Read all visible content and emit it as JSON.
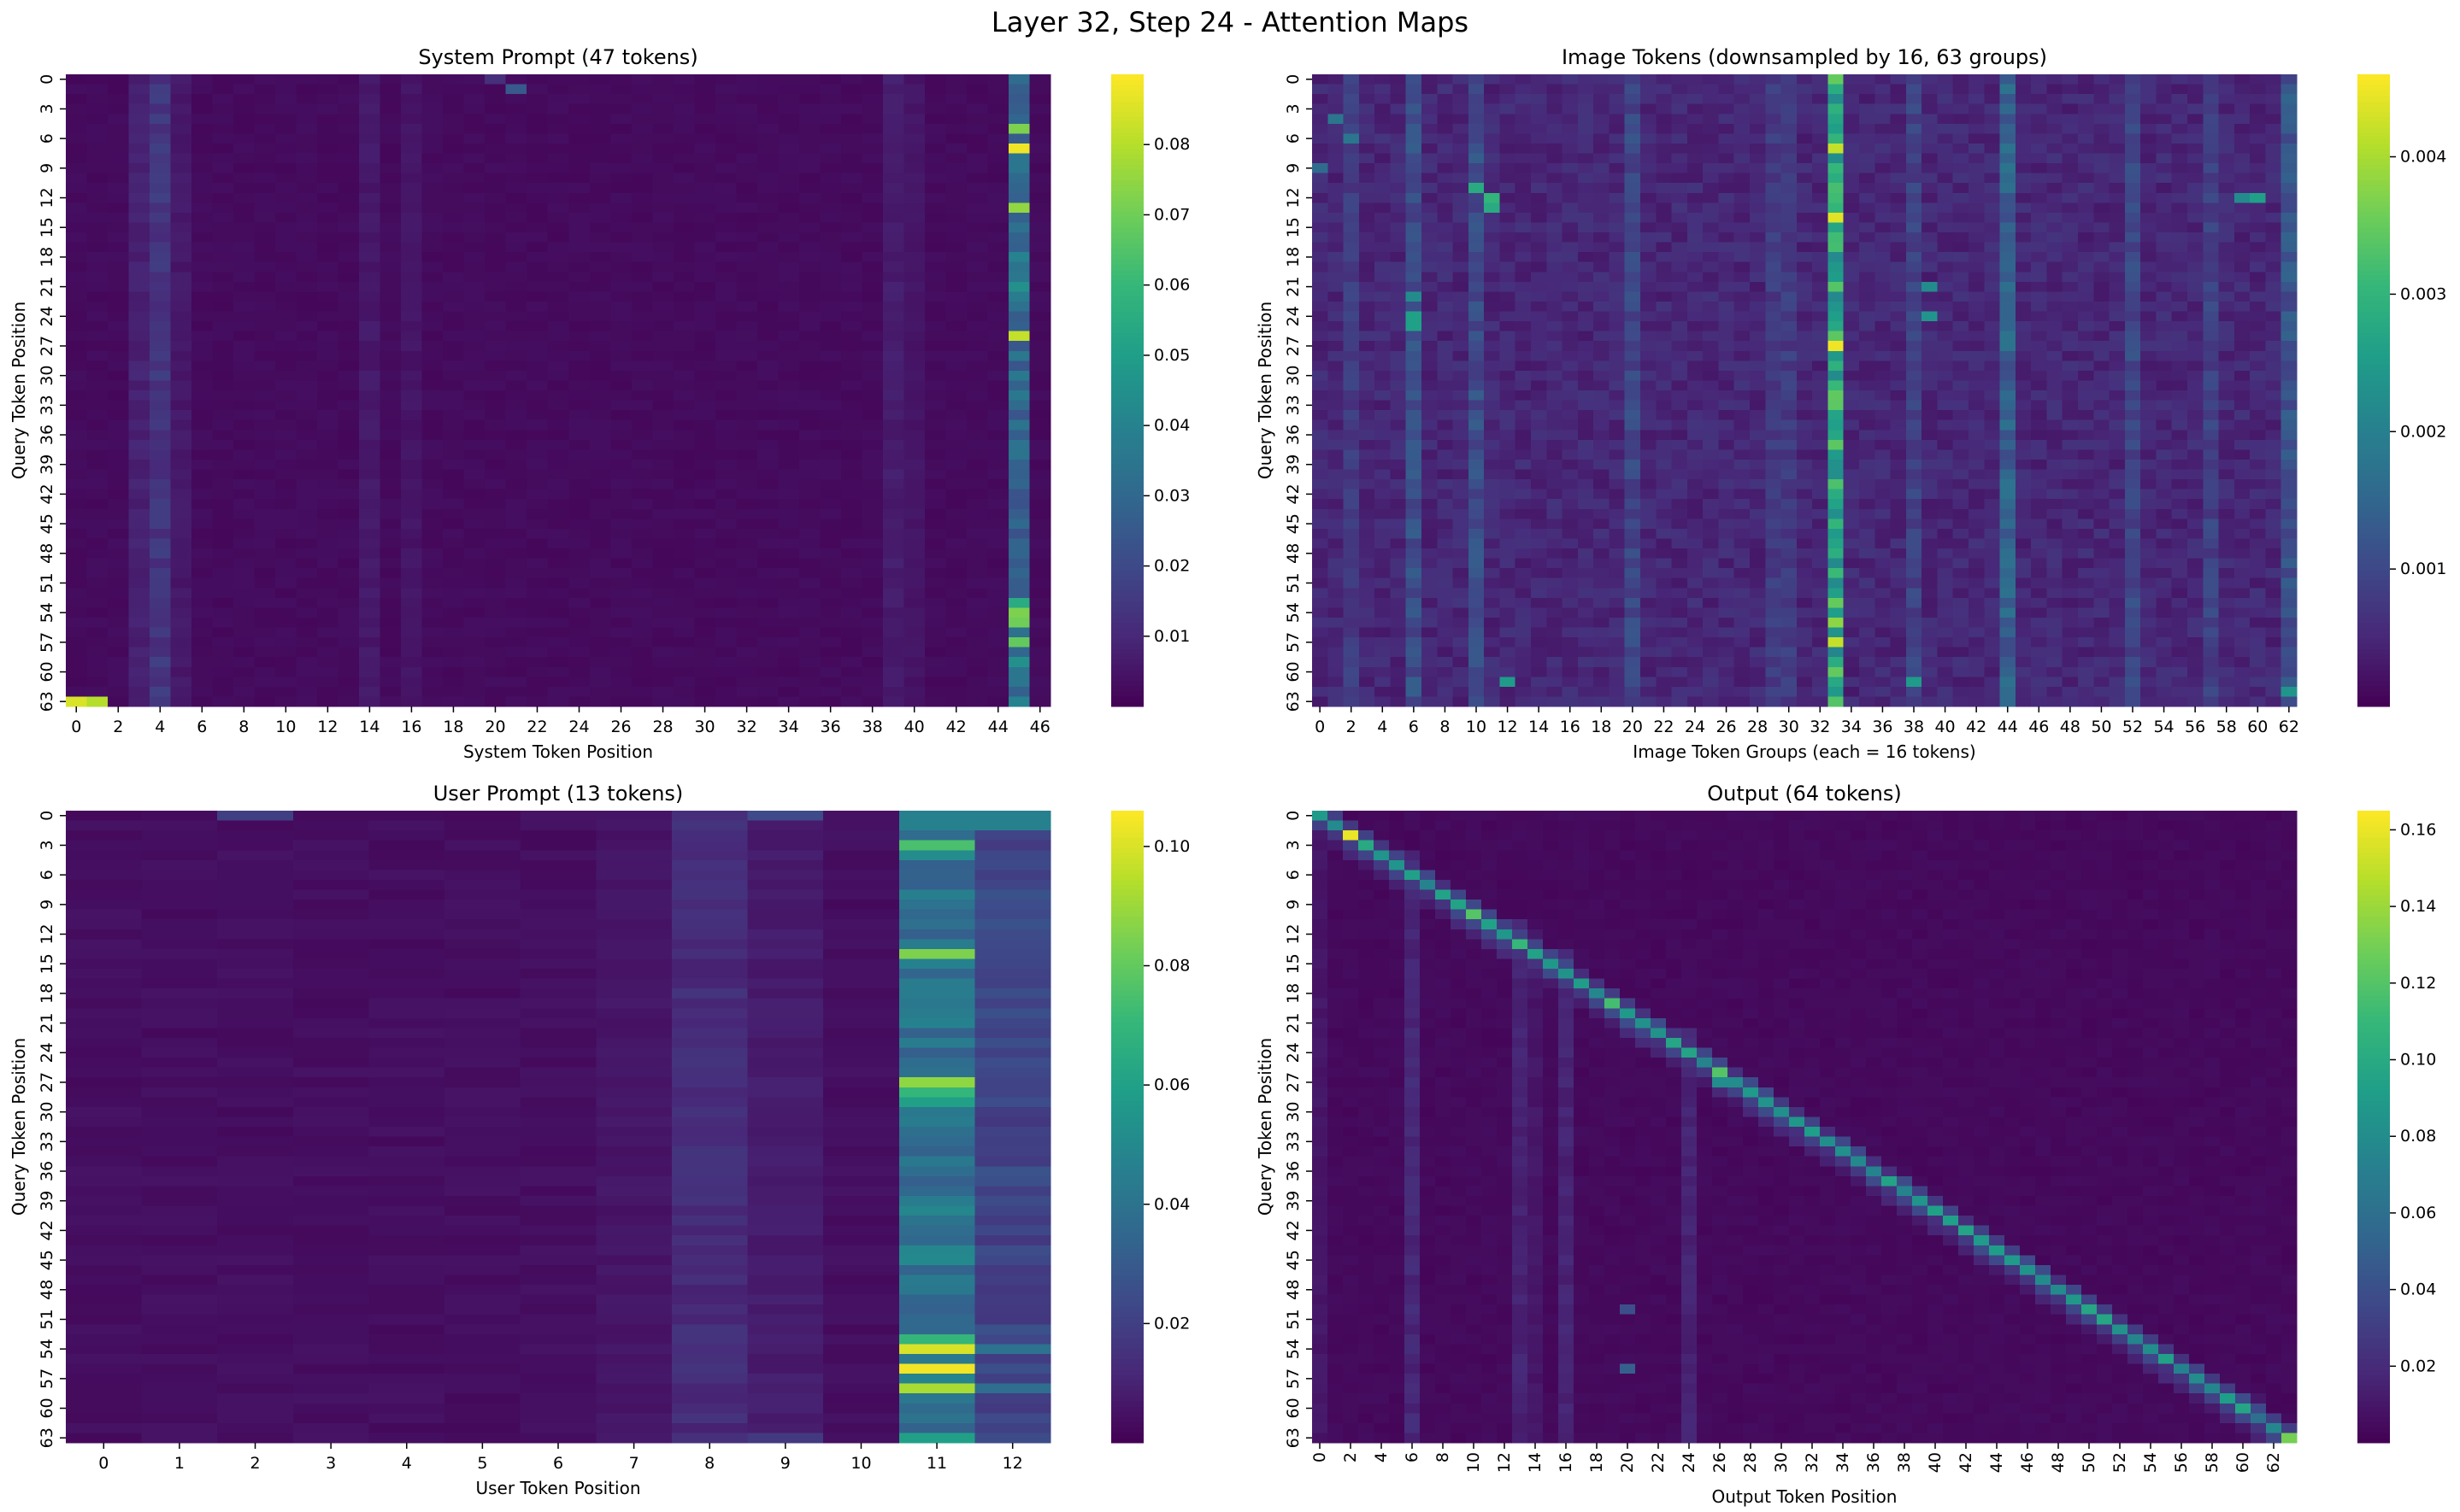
{
  "figure": {
    "title": "Layer 32, Step 24 - Attention Maps"
  },
  "colors": {
    "viridis_stops": [
      "#440154",
      "#482878",
      "#3e4989",
      "#31688e",
      "#26828e",
      "#1f9e89",
      "#35b779",
      "#6ece58",
      "#b5de2b",
      "#fde725"
    ]
  },
  "chart_data": [
    {
      "type": "heatmap",
      "title": "System Prompt (47 tokens)",
      "xlabel": "System Token Position",
      "ylabel": "Query Token Position",
      "rows": 64,
      "cols": 47,
      "x_ticks": [
        0,
        2,
        4,
        6,
        8,
        10,
        12,
        14,
        16,
        18,
        20,
        22,
        24,
        26,
        28,
        30,
        32,
        34,
        36,
        38,
        40,
        42,
        44,
        46
      ],
      "x_tick_rotation": 0,
      "y_ticks": [
        0,
        3,
        6,
        9,
        12,
        15,
        18,
        21,
        24,
        27,
        30,
        33,
        36,
        39,
        42,
        45,
        48,
        51,
        54,
        57,
        60,
        63
      ],
      "colorbar": {
        "vmin": 0.0,
        "vmax": 0.09,
        "ticks": [
          0.01,
          0.02,
          0.03,
          0.04,
          0.05,
          0.06,
          0.07,
          0.08
        ]
      },
      "pattern": {
        "base": 0.0025,
        "columns": [
          {
            "col": 45,
            "value": 0.03
          },
          {
            "col": 4,
            "value": 0.014
          },
          {
            "col": 3,
            "value": 0.008
          },
          {
            "col": 5,
            "value": 0.006
          },
          {
            "col": 39,
            "value": 0.007
          },
          {
            "col": 40,
            "value": 0.005
          },
          {
            "col": 14,
            "value": 0.006
          },
          {
            "col": 16,
            "value": 0.005
          }
        ],
        "cells": [
          {
            "row": 5,
            "col": 45,
            "value": 0.072
          },
          {
            "row": 7,
            "col": 45,
            "value": 0.088
          },
          {
            "row": 13,
            "col": 45,
            "value": 0.075
          },
          {
            "row": 26,
            "col": 45,
            "value": 0.082
          },
          {
            "row": 21,
            "col": 45,
            "value": 0.045
          },
          {
            "row": 18,
            "col": 45,
            "value": 0.04
          },
          {
            "row": 53,
            "col": 45,
            "value": 0.055
          },
          {
            "row": 54,
            "col": 45,
            "value": 0.072
          },
          {
            "row": 55,
            "col": 45,
            "value": 0.07
          },
          {
            "row": 57,
            "col": 45,
            "value": 0.068
          },
          {
            "row": 59,
            "col": 45,
            "value": 0.045
          },
          {
            "row": 63,
            "col": 45,
            "value": 0.04
          },
          {
            "row": 63,
            "col": 0,
            "value": 0.085
          },
          {
            "row": 63,
            "col": 1,
            "value": 0.08
          },
          {
            "row": 1,
            "col": 21,
            "value": 0.025
          },
          {
            "row": 0,
            "col": 20,
            "value": 0.012
          }
        ]
      }
    },
    {
      "type": "heatmap",
      "title": "Image Tokens (downsampled by 16, 63 groups)",
      "xlabel": "Image Token Groups (each = 16 tokens)",
      "ylabel": "Query Token Position",
      "rows": 64,
      "cols": 63,
      "x_ticks": [
        0,
        2,
        4,
        6,
        8,
        10,
        12,
        14,
        16,
        18,
        20,
        22,
        24,
        26,
        28,
        30,
        32,
        34,
        36,
        38,
        40,
        42,
        44,
        46,
        48,
        50,
        52,
        54,
        56,
        58,
        60,
        62
      ],
      "x_tick_rotation": 0,
      "y_ticks": [
        0,
        3,
        6,
        9,
        12,
        15,
        18,
        21,
        24,
        27,
        30,
        33,
        36,
        39,
        42,
        45,
        48,
        51,
        54,
        57,
        60,
        63
      ],
      "colorbar": {
        "vmin": 0.0,
        "vmax": 0.0046,
        "ticks": [
          0.001,
          0.002,
          0.003,
          0.004
        ]
      },
      "pattern": {
        "base": 0.0005,
        "columns": [
          {
            "col": 33,
            "value": 0.0028
          },
          {
            "col": 44,
            "value": 0.0014
          },
          {
            "col": 10,
            "value": 0.0011
          },
          {
            "col": 6,
            "value": 0.0011
          },
          {
            "col": 20,
            "value": 0.001
          },
          {
            "col": 52,
            "value": 0.001
          },
          {
            "col": 57,
            "value": 0.0009
          },
          {
            "col": 38,
            "value": 0.0009
          },
          {
            "col": 29,
            "value": 0.0008
          },
          {
            "col": 30,
            "value": 0.0008
          },
          {
            "col": 2,
            "value": 0.0008
          },
          {
            "col": 62,
            "value": 0.0012
          }
        ],
        "cells": [
          {
            "row": 7,
            "col": 33,
            "value": 0.0042
          },
          {
            "row": 14,
            "col": 33,
            "value": 0.0044
          },
          {
            "row": 27,
            "col": 33,
            "value": 0.0045
          },
          {
            "row": 55,
            "col": 33,
            "value": 0.0038
          },
          {
            "row": 57,
            "col": 33,
            "value": 0.0042
          },
          {
            "row": 11,
            "col": 10,
            "value": 0.0028
          },
          {
            "row": 12,
            "col": 11,
            "value": 0.003
          },
          {
            "row": 13,
            "col": 11,
            "value": 0.0028
          },
          {
            "row": 24,
            "col": 6,
            "value": 0.0026
          },
          {
            "row": 25,
            "col": 6,
            "value": 0.0026
          },
          {
            "row": 22,
            "col": 6,
            "value": 0.0022
          },
          {
            "row": 24,
            "col": 39,
            "value": 0.0024
          },
          {
            "row": 21,
            "col": 39,
            "value": 0.0022
          },
          {
            "row": 12,
            "col": 60,
            "value": 0.0026
          },
          {
            "row": 12,
            "col": 59,
            "value": 0.0022
          },
          {
            "row": 61,
            "col": 12,
            "value": 0.0025
          },
          {
            "row": 61,
            "col": 38,
            "value": 0.0025
          },
          {
            "row": 62,
            "col": 62,
            "value": 0.0024
          },
          {
            "row": 9,
            "col": 0,
            "value": 0.0016
          },
          {
            "row": 4,
            "col": 1,
            "value": 0.0018
          },
          {
            "row": 6,
            "col": 2,
            "value": 0.0018
          }
        ]
      }
    },
    {
      "type": "heatmap",
      "title": "User Prompt (13 tokens)",
      "xlabel": "User Token Position",
      "ylabel": "Query Token Position",
      "rows": 64,
      "cols": 13,
      "x_ticks": [
        0,
        1,
        2,
        3,
        4,
        5,
        6,
        7,
        8,
        9,
        10,
        11,
        12
      ],
      "x_tick_rotation": 0,
      "y_ticks": [
        0,
        3,
        6,
        9,
        12,
        15,
        18,
        21,
        24,
        27,
        30,
        33,
        36,
        39,
        42,
        45,
        48,
        51,
        54,
        57,
        60,
        63
      ],
      "colorbar": {
        "vmin": 0.0,
        "vmax": 0.106,
        "ticks": [
          0.02,
          0.04,
          0.06,
          0.08,
          0.1
        ]
      },
      "pattern": {
        "base": 0.004,
        "columns": [
          {
            "col": 11,
            "value": 0.042
          },
          {
            "col": 12,
            "value": 0.022
          },
          {
            "col": 8,
            "value": 0.013
          },
          {
            "col": 9,
            "value": 0.008
          },
          {
            "col": 7,
            "value": 0.006
          }
        ],
        "cells": [
          {
            "row": 0,
            "col": 11,
            "value": 0.046
          },
          {
            "row": 0,
            "col": 12,
            "value": 0.046
          },
          {
            "row": 1,
            "col": 11,
            "value": 0.046
          },
          {
            "row": 1,
            "col": 12,
            "value": 0.046
          },
          {
            "row": 0,
            "col": 2,
            "value": 0.02
          },
          {
            "row": 0,
            "col": 9,
            "value": 0.024
          },
          {
            "row": 3,
            "col": 11,
            "value": 0.075
          },
          {
            "row": 14,
            "col": 11,
            "value": 0.085
          },
          {
            "row": 27,
            "col": 11,
            "value": 0.088
          },
          {
            "row": 28,
            "col": 11,
            "value": 0.07
          },
          {
            "row": 29,
            "col": 11,
            "value": 0.06
          },
          {
            "row": 53,
            "col": 11,
            "value": 0.07
          },
          {
            "row": 54,
            "col": 11,
            "value": 0.1
          },
          {
            "row": 56,
            "col": 11,
            "value": 0.104
          },
          {
            "row": 58,
            "col": 11,
            "value": 0.092
          },
          {
            "row": 63,
            "col": 11,
            "value": 0.06
          },
          {
            "row": 54,
            "col": 12,
            "value": 0.04
          },
          {
            "row": 58,
            "col": 12,
            "value": 0.038
          },
          {
            "row": 63,
            "col": 9,
            "value": 0.018
          }
        ]
      }
    },
    {
      "type": "heatmap",
      "title": "Output (64 tokens)",
      "xlabel": "Output Token Position",
      "ylabel": "Query Token Position",
      "rows": 64,
      "cols": 64,
      "x_ticks": [
        0,
        2,
        4,
        6,
        8,
        10,
        12,
        14,
        16,
        18,
        20,
        22,
        24,
        26,
        28,
        30,
        32,
        34,
        36,
        38,
        40,
        42,
        44,
        46,
        48,
        50,
        52,
        54,
        56,
        58,
        60,
        62
      ],
      "x_tick_rotation": 90,
      "y_ticks": [
        0,
        3,
        6,
        9,
        12,
        15,
        18,
        21,
        24,
        27,
        30,
        33,
        36,
        39,
        42,
        45,
        48,
        51,
        54,
        57,
        60,
        63
      ],
      "colorbar": {
        "vmin": 0.0,
        "vmax": 0.165,
        "ticks": [
          0.02,
          0.04,
          0.06,
          0.08,
          0.1,
          0.12,
          0.14,
          0.16
        ]
      },
      "pattern": {
        "base": 0.004,
        "diagonal": {
          "value": 0.085,
          "near": 0.03
        },
        "columns": [
          {
            "col": 6,
            "value": 0.018
          },
          {
            "col": 13,
            "value": 0.016
          },
          {
            "col": 16,
            "value": 0.016
          },
          {
            "col": 24,
            "value": 0.016
          },
          {
            "col": 14,
            "value": 0.01
          },
          {
            "col": 61,
            "value": 0.012
          },
          {
            "col": 0,
            "value": 0.01
          }
        ],
        "cells": [
          {
            "row": 0,
            "col": 0,
            "value": 0.09
          },
          {
            "row": 2,
            "col": 2,
            "value": 0.16
          },
          {
            "row": 3,
            "col": 3,
            "value": 0.1
          },
          {
            "row": 10,
            "col": 10,
            "value": 0.12
          },
          {
            "row": 13,
            "col": 13,
            "value": 0.11
          },
          {
            "row": 19,
            "col": 19,
            "value": 0.115
          },
          {
            "row": 26,
            "col": 26,
            "value": 0.12
          },
          {
            "row": 27,
            "col": 26,
            "value": 0.08
          },
          {
            "row": 63,
            "col": 63,
            "value": 0.13
          },
          {
            "row": 61,
            "col": 61,
            "value": 0.06
          },
          {
            "row": 56,
            "col": 20,
            "value": 0.05
          },
          {
            "row": 50,
            "col": 20,
            "value": 0.04
          }
        ]
      }
    }
  ]
}
